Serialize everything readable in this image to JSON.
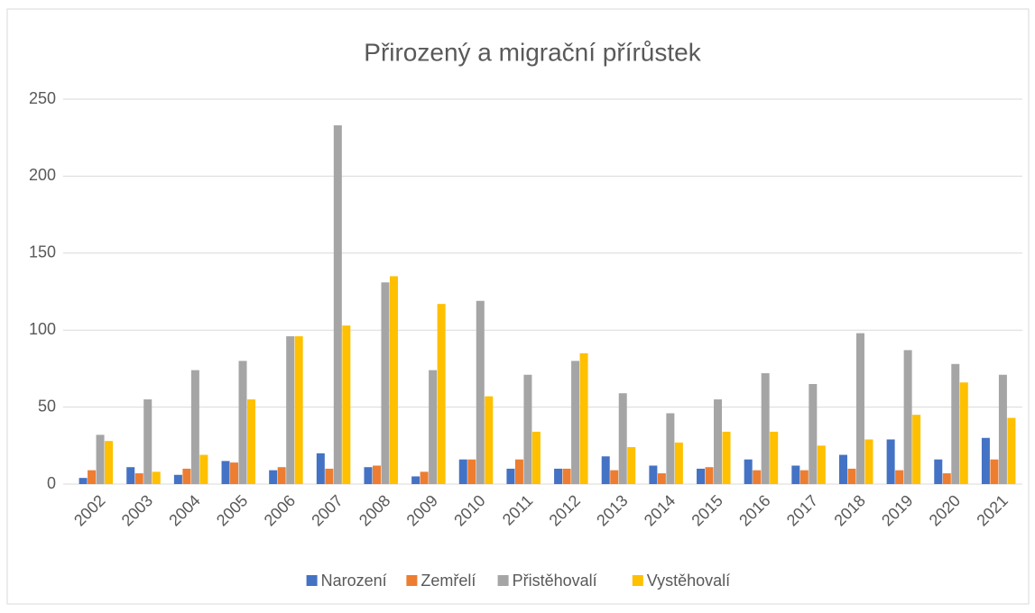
{
  "chart_data": {
    "type": "bar",
    "title": "Přirozený a migrační přírůstek",
    "categories": [
      "2002",
      "2003",
      "2004",
      "2005",
      "2006",
      "2007",
      "2008",
      "2009",
      "2010",
      "2011",
      "2012",
      "2013",
      "2014",
      "2015",
      "2016",
      "2017",
      "2018",
      "2019",
      "2020",
      "2021"
    ],
    "series": [
      {
        "name": "Narození",
        "color": "#4472c4",
        "values": [
          4,
          11,
          6,
          15,
          9,
          20,
          11,
          5,
          16,
          10,
          10,
          18,
          12,
          10,
          16,
          12,
          19,
          29,
          16,
          30
        ]
      },
      {
        "name": "Zemřelí",
        "color": "#ed7d31",
        "values": [
          9,
          7,
          10,
          14,
          11,
          10,
          12,
          8,
          16,
          16,
          10,
          9,
          7,
          11,
          9,
          9,
          10,
          9,
          7,
          16
        ]
      },
      {
        "name": "Přistěhovalí",
        "color": "#a5a5a5",
        "values": [
          32,
          55,
          74,
          80,
          96,
          233,
          131,
          74,
          119,
          71,
          80,
          59,
          46,
          55,
          72,
          65,
          98,
          87,
          78,
          71
        ]
      },
      {
        "name": "Vystěhovalí",
        "color": "#ffc000",
        "values": [
          28,
          8,
          19,
          55,
          96,
          103,
          135,
          117,
          57,
          34,
          85,
          24,
          27,
          34,
          34,
          25,
          29,
          45,
          66,
          43
        ]
      }
    ],
    "ylim": [
      0,
      250
    ],
    "yticks": [
      0,
      50,
      100,
      150,
      200,
      250
    ],
    "grid": true,
    "legend": "bottom"
  }
}
